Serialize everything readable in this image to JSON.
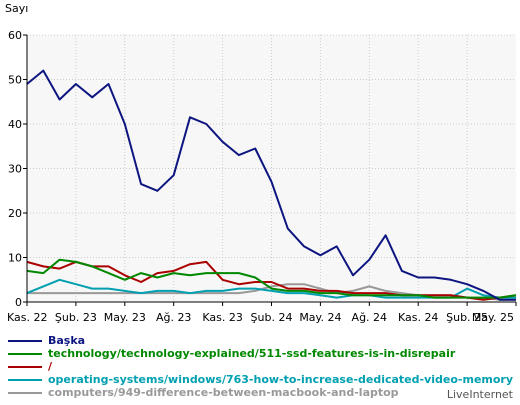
{
  "chart_data": {
    "type": "line",
    "title": "",
    "ylabel": "Sayı",
    "xlabel": "",
    "ylim": [
      0,
      60
    ],
    "yticks": [
      0,
      10,
      20,
      30,
      40,
      50,
      60
    ],
    "grid": true,
    "background": "#f7f7f7",
    "legend_position": "bottom",
    "xtick_labels": [
      "Kas. 22",
      "Şub. 23",
      "May. 23",
      "Ağ. 23",
      "Kas. 23",
      "Şub. 24",
      "May. 24",
      "Ağ. 24",
      "Kas. 24",
      "Şub. 25",
      "May. 25"
    ],
    "series": [
      {
        "name": "Başka",
        "color": "#0d1580",
        "values": [
          49,
          52,
          45.5,
          49,
          46,
          49,
          40,
          26.5,
          25,
          28.5,
          41.5,
          40,
          36,
          33,
          34.5,
          27,
          16.5,
          12.5,
          10.5,
          12.5,
          6,
          9.5,
          15,
          7,
          5.5,
          5.5,
          5,
          4,
          2.5,
          0.5,
          0.5
        ]
      },
      {
        "name": "technology/technology-explained/511-ssd-features-is-in-disrepair",
        "color": "#008800",
        "values": [
          7,
          6.5,
          9.5,
          9,
          8,
          6.5,
          5,
          6.5,
          5.5,
          6.5,
          6,
          6.5,
          6.5,
          6.5,
          5.5,
          3,
          2.5,
          2.5,
          2,
          2,
          1.5,
          1.5,
          1.5,
          1.5,
          1.5,
          1,
          1,
          1,
          1,
          1,
          1.5
        ]
      },
      {
        "name": "/",
        "color": "#aa0000",
        "values": [
          9,
          8,
          7.5,
          9,
          8,
          8,
          6,
          4.5,
          6.5,
          7,
          8.5,
          9,
          5,
          4,
          4.5,
          4.5,
          3,
          3,
          2.5,
          2.5,
          2,
          2,
          2,
          1.5,
          1.5,
          1.5,
          1.5,
          1,
          0.5,
          1,
          1.5
        ]
      },
      {
        "name": "operating-systems/windows/763-how-to-increase-dedicated-video-memory",
        "color": "#00a0b0",
        "values": [
          2,
          3.5,
          5,
          4,
          3,
          3,
          2.5,
          2,
          2.5,
          2.5,
          2,
          2.5,
          2.5,
          3,
          3,
          2.5,
          2,
          2,
          1.5,
          1,
          1.5,
          1.5,
          1,
          1,
          1,
          1,
          1,
          3,
          1.5,
          1,
          1
        ]
      },
      {
        "name": "computers/949-difference-between-macbook-and-laptop",
        "color": "#999999",
        "values": [
          2,
          2,
          2,
          2,
          2,
          2,
          2,
          2,
          2,
          2,
          2,
          2,
          2,
          2,
          2.5,
          3.5,
          4,
          4,
          3,
          2,
          2.5,
          3.5,
          2.5,
          2,
          1.5,
          1.5,
          1.5,
          1,
          1,
          0.5,
          0.5
        ]
      }
    ]
  },
  "footer": "LiveInternet"
}
